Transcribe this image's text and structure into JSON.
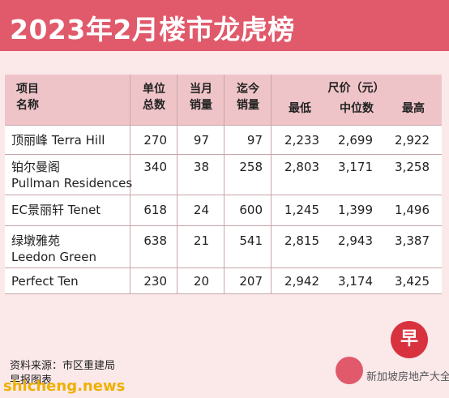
{
  "title": "2023年2月楼市龙虎榜",
  "headers": {
    "name": [
      "项目",
      "名称"
    ],
    "units": [
      "单位",
      "总数"
    ],
    "month_sales": [
      "当月",
      "销量"
    ],
    "to_date_sales": [
      "迄今",
      "销量"
    ],
    "psf": "尺价（元）",
    "min": "最低",
    "median": "中位数",
    "max": "最高"
  },
  "rows": [
    {
      "name": [
        "顶丽峰 Terra Hill"
      ],
      "units": "270",
      "month": "97",
      "to_date": "97",
      "min": "2,233",
      "median": "2,699",
      "max": "2,922"
    },
    {
      "name": [
        "铂尔曼阁",
        "Pullman Residences"
      ],
      "units": "340",
      "month": "38",
      "to_date": "258",
      "min": "2,803",
      "median": "3,171",
      "max": "3,258"
    },
    {
      "name": [
        "EC景丽轩 Tenet"
      ],
      "units": "618",
      "month": "24",
      "to_date": "600",
      "min": "1,245",
      "median": "1,399",
      "max": "1,496"
    },
    {
      "name": [
        "绿墩雅苑",
        "Leedon Green"
      ],
      "units": "638",
      "month": "21",
      "to_date": "541",
      "min": "2,815",
      "median": "2,943",
      "max": "3,387"
    },
    {
      "name": [
        "Perfect Ten"
      ],
      "units": "230",
      "month": "20",
      "to_date": "207",
      "min": "2,942",
      "median": "3,174",
      "max": "3,425"
    }
  ],
  "footer": {
    "source": "资料来源：市区重建局",
    "credit": "早报图表"
  },
  "watermark": {
    "site": "shicheng.news",
    "account": "新加坡房地产大全",
    "badge": "早"
  }
}
